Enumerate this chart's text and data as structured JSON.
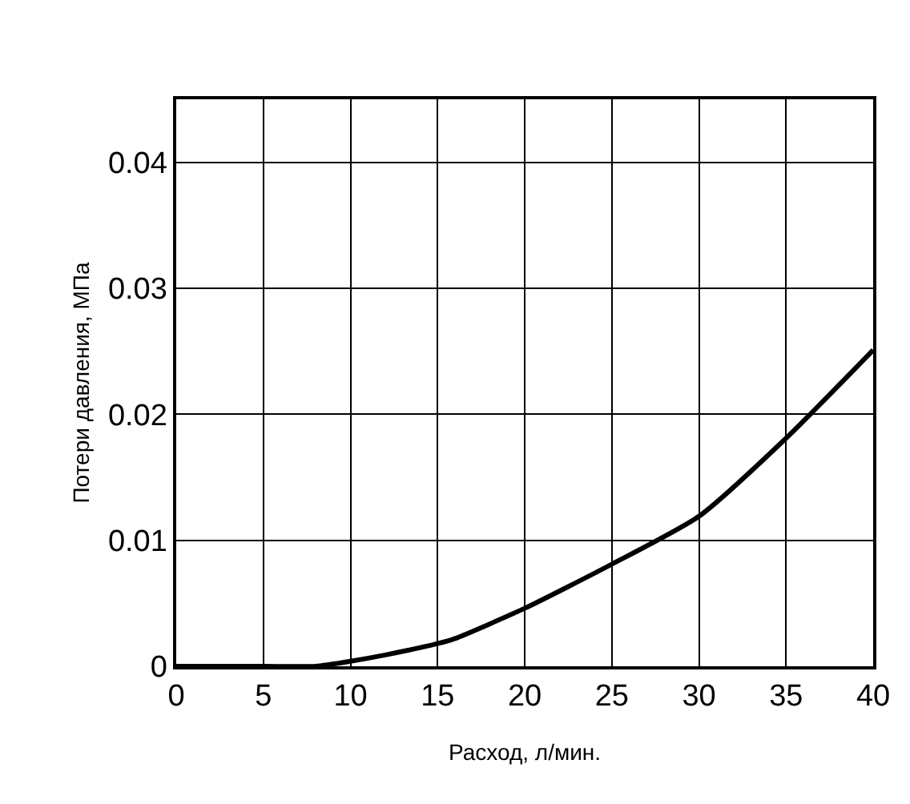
{
  "chart_data": {
    "type": "line",
    "xlabel": "Расход, л/мин.",
    "ylabel": "Потери давления, МПа",
    "x": [
      0,
      5,
      8,
      10,
      12,
      15,
      16,
      20,
      25,
      30,
      35,
      40
    ],
    "series": [
      {
        "color": "#000000",
        "values": [
          0,
          0,
          0,
          0.0004,
          0.0009,
          0.0018,
          0.0022,
          0.0046,
          0.0081,
          0.0119,
          0.0181,
          0.0251
        ]
      }
    ],
    "xlim": [
      0,
      40
    ],
    "xticks": [
      0,
      5,
      10,
      15,
      20,
      25,
      30,
      35,
      40
    ],
    "ylim": [
      0,
      0.045
    ],
    "yticks": [
      0,
      0.01,
      0.02,
      0.03,
      0.04
    ],
    "grid": true,
    "legend": false,
    "marker": "none",
    "line_style": "solid"
  }
}
